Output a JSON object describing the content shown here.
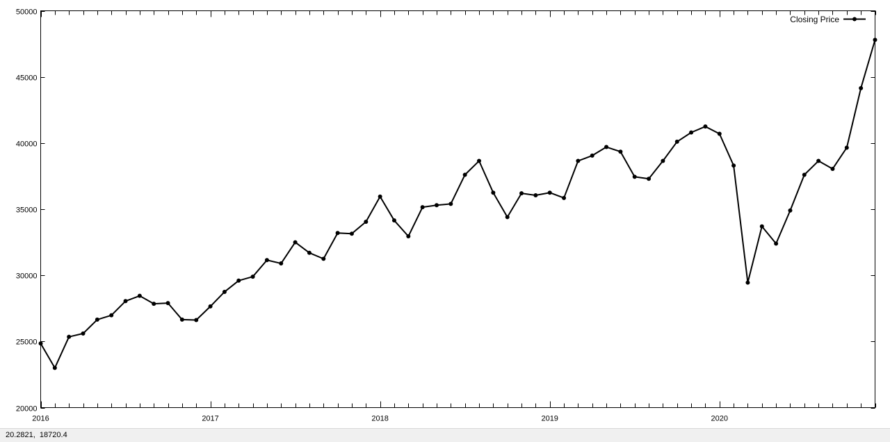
{
  "status_bar": {
    "coords": "20.2821,  18720.4"
  },
  "colors": {
    "series": "#000000",
    "background": "#ffffff",
    "frame": "#000000"
  },
  "chart_data": {
    "type": "line",
    "title": "",
    "xlabel": "",
    "ylabel": "",
    "grid": false,
    "legend_position": "top-right",
    "xlim": [
      "2016-01",
      "2020-12"
    ],
    "ylim": [
      20000,
      50000
    ],
    "x_ticks": [
      "2016",
      "2017",
      "2018",
      "2019",
      "2020"
    ],
    "y_ticks": [
      "20000",
      "25000",
      "30000",
      "35000",
      "40000",
      "45000",
      "50000"
    ],
    "x": [
      "2016-01",
      "2016-02",
      "2016-03",
      "2016-04",
      "2016-05",
      "2016-06",
      "2016-07",
      "2016-08",
      "2016-09",
      "2016-10",
      "2016-11",
      "2016-12",
      "2017-01",
      "2017-02",
      "2017-03",
      "2017-04",
      "2017-05",
      "2017-06",
      "2017-07",
      "2017-08",
      "2017-09",
      "2017-10",
      "2017-11",
      "2017-12",
      "2018-01",
      "2018-02",
      "2018-03",
      "2018-04",
      "2018-05",
      "2018-06",
      "2018-07",
      "2018-08",
      "2018-09",
      "2018-10",
      "2018-11",
      "2018-12",
      "2019-01",
      "2019-02",
      "2019-03",
      "2019-04",
      "2019-05",
      "2019-06",
      "2019-07",
      "2019-08",
      "2019-09",
      "2019-10",
      "2019-11",
      "2019-12",
      "2020-01",
      "2020-02",
      "2020-03",
      "2020-04",
      "2020-05",
      "2020-06",
      "2020-07",
      "2020-08",
      "2020-09",
      "2020-10",
      "2020-11",
      "2020-12"
    ],
    "series": [
      {
        "name": "Closing Price",
        "marker": "circle",
        "values": [
          24850,
          23000,
          25350,
          25600,
          26650,
          26980,
          28050,
          28450,
          27850,
          27900,
          26650,
          26620,
          27650,
          28750,
          29600,
          29900,
          31150,
          30900,
          32500,
          31700,
          31250,
          33200,
          33150,
          34050,
          35950,
          34150,
          32950,
          35150,
          35300,
          35400,
          37600,
          38650,
          36250,
          34400,
          36200,
          36050,
          36250,
          35850,
          38650,
          39050,
          39700,
          39350,
          37450,
          37300,
          38650,
          40100,
          40800,
          41250,
          40700,
          38300,
          29450,
          33700,
          32400,
          34900,
          37600,
          38650,
          38050,
          39650,
          44150,
          47800
        ]
      }
    ]
  }
}
